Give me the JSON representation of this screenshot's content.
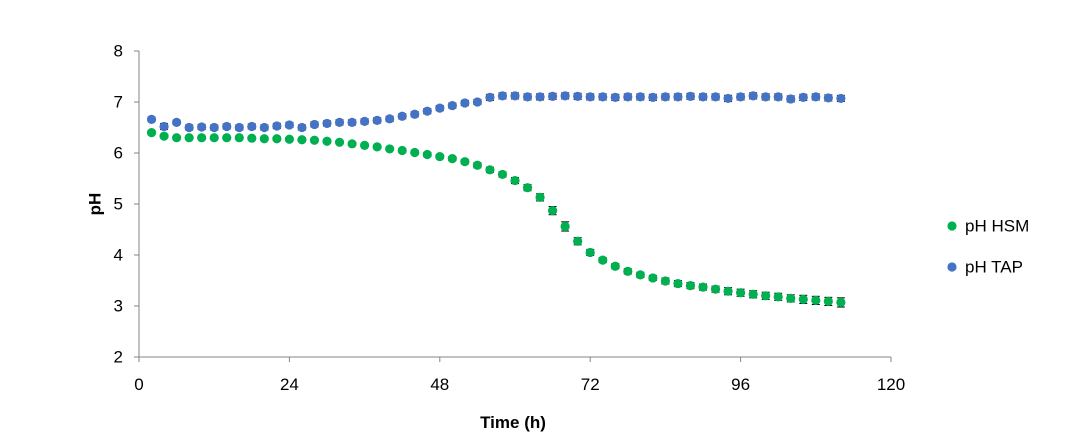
{
  "chart_data": {
    "type": "scatter",
    "title": "",
    "xlabel": "Time (h)",
    "ylabel": "pH",
    "xlim": [
      0,
      120
    ],
    "ylim": [
      2,
      8
    ],
    "xticks": [
      "0",
      "24",
      "48",
      "72",
      "96",
      "120"
    ],
    "yticks": [
      "2",
      "3",
      "4",
      "5",
      "6",
      "7",
      "8"
    ],
    "grid": false,
    "legend_position": "right",
    "error_bars": true,
    "series": [
      {
        "name": "pH HSM",
        "color": "#00b050",
        "x": [
          2,
          4,
          6,
          8,
          10,
          12,
          14,
          16,
          18,
          20,
          22,
          24,
          26,
          28,
          30,
          32,
          34,
          36,
          38,
          40,
          42,
          44,
          46,
          48,
          50,
          52,
          54,
          56,
          58,
          60,
          62,
          64,
          66,
          68,
          70,
          72,
          74,
          76,
          78,
          80,
          82,
          84,
          86,
          88,
          90,
          92,
          94,
          96,
          98,
          100,
          102,
          104,
          106,
          108,
          110,
          112
        ],
        "y": [
          6.4,
          6.33,
          6.3,
          6.3,
          6.3,
          6.3,
          6.3,
          6.3,
          6.29,
          6.28,
          6.28,
          6.27,
          6.26,
          6.25,
          6.23,
          6.21,
          6.18,
          6.15,
          6.12,
          6.08,
          6.05,
          6.01,
          5.97,
          5.93,
          5.89,
          5.83,
          5.76,
          5.67,
          5.58,
          5.46,
          5.32,
          5.13,
          4.87,
          4.56,
          4.27,
          4.05,
          3.9,
          3.78,
          3.68,
          3.61,
          3.55,
          3.49,
          3.44,
          3.4,
          3.37,
          3.33,
          3.29,
          3.26,
          3.23,
          3.2,
          3.18,
          3.15,
          3.13,
          3.11,
          3.09,
          3.07
        ],
        "error": [
          0.04,
          0.03,
          0.03,
          0.03,
          0.03,
          0.03,
          0.03,
          0.03,
          0.03,
          0.03,
          0.03,
          0.03,
          0.03,
          0.03,
          0.03,
          0.03,
          0.03,
          0.03,
          0.03,
          0.03,
          0.03,
          0.03,
          0.04,
          0.04,
          0.04,
          0.04,
          0.05,
          0.05,
          0.05,
          0.06,
          0.06,
          0.07,
          0.08,
          0.09,
          0.07,
          0.06,
          0.05,
          0.05,
          0.05,
          0.05,
          0.05,
          0.06,
          0.06,
          0.06,
          0.06,
          0.06,
          0.07,
          0.07,
          0.07,
          0.07,
          0.07,
          0.07,
          0.08,
          0.08,
          0.08,
          0.09
        ]
      },
      {
        "name": "pH TAP",
        "color": "#4472c4",
        "x": [
          2,
          4,
          6,
          8,
          10,
          12,
          14,
          16,
          18,
          20,
          22,
          24,
          26,
          28,
          30,
          32,
          34,
          36,
          38,
          40,
          42,
          44,
          46,
          48,
          50,
          52,
          54,
          56,
          58,
          60,
          62,
          64,
          66,
          68,
          70,
          72,
          74,
          76,
          78,
          80,
          82,
          84,
          86,
          88,
          90,
          92,
          94,
          96,
          98,
          100,
          102,
          104,
          106,
          108,
          110,
          112
        ],
        "y": [
          6.66,
          6.52,
          6.6,
          6.5,
          6.51,
          6.5,
          6.52,
          6.5,
          6.52,
          6.5,
          6.53,
          6.55,
          6.5,
          6.56,
          6.58,
          6.6,
          6.6,
          6.62,
          6.64,
          6.67,
          6.72,
          6.76,
          6.82,
          6.88,
          6.93,
          6.98,
          7.0,
          7.09,
          7.12,
          7.12,
          7.1,
          7.1,
          7.11,
          7.12,
          7.11,
          7.1,
          7.1,
          7.09,
          7.1,
          7.1,
          7.09,
          7.1,
          7.1,
          7.11,
          7.1,
          7.1,
          7.07,
          7.1,
          7.12,
          7.1,
          7.1,
          7.06,
          7.09,
          7.1,
          7.08,
          7.07
        ],
        "error": [
          0.04,
          0.06,
          0.04,
          0.05,
          0.05,
          0.05,
          0.05,
          0.05,
          0.05,
          0.05,
          0.05,
          0.05,
          0.05,
          0.05,
          0.05,
          0.05,
          0.05,
          0.05,
          0.05,
          0.05,
          0.05,
          0.05,
          0.05,
          0.05,
          0.05,
          0.05,
          0.05,
          0.06,
          0.06,
          0.06,
          0.06,
          0.06,
          0.06,
          0.06,
          0.06,
          0.06,
          0.06,
          0.06,
          0.06,
          0.06,
          0.06,
          0.06,
          0.06,
          0.06,
          0.06,
          0.06,
          0.06,
          0.06,
          0.06,
          0.06,
          0.06,
          0.06,
          0.06,
          0.06,
          0.06,
          0.06
        ]
      }
    ]
  }
}
